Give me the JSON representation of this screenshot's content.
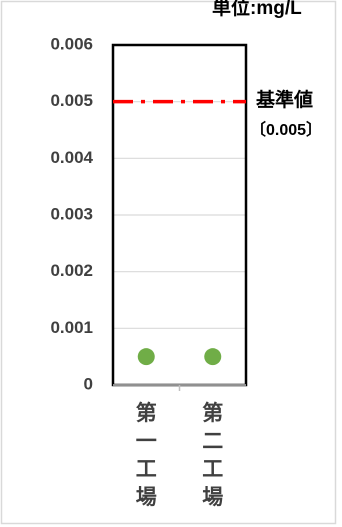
{
  "chart_data": {
    "type": "scatter",
    "unit_label": "単位:mg/L",
    "categories": [
      "第一工場",
      "第二工場"
    ],
    "series": [
      {
        "values": [
          0.0005,
          0.0005
        ],
        "color": "#70ad47"
      }
    ],
    "y_ticks": [
      "0",
      "0.001",
      "0.002",
      "0.003",
      "0.004",
      "0.005",
      "0.006"
    ],
    "ylim": [
      0,
      0.006
    ],
    "grid": true,
    "reference_line": {
      "value": 0.005,
      "label": "基準値",
      "sublabel": "〔0.005〕",
      "color": "#ff0000"
    }
  }
}
